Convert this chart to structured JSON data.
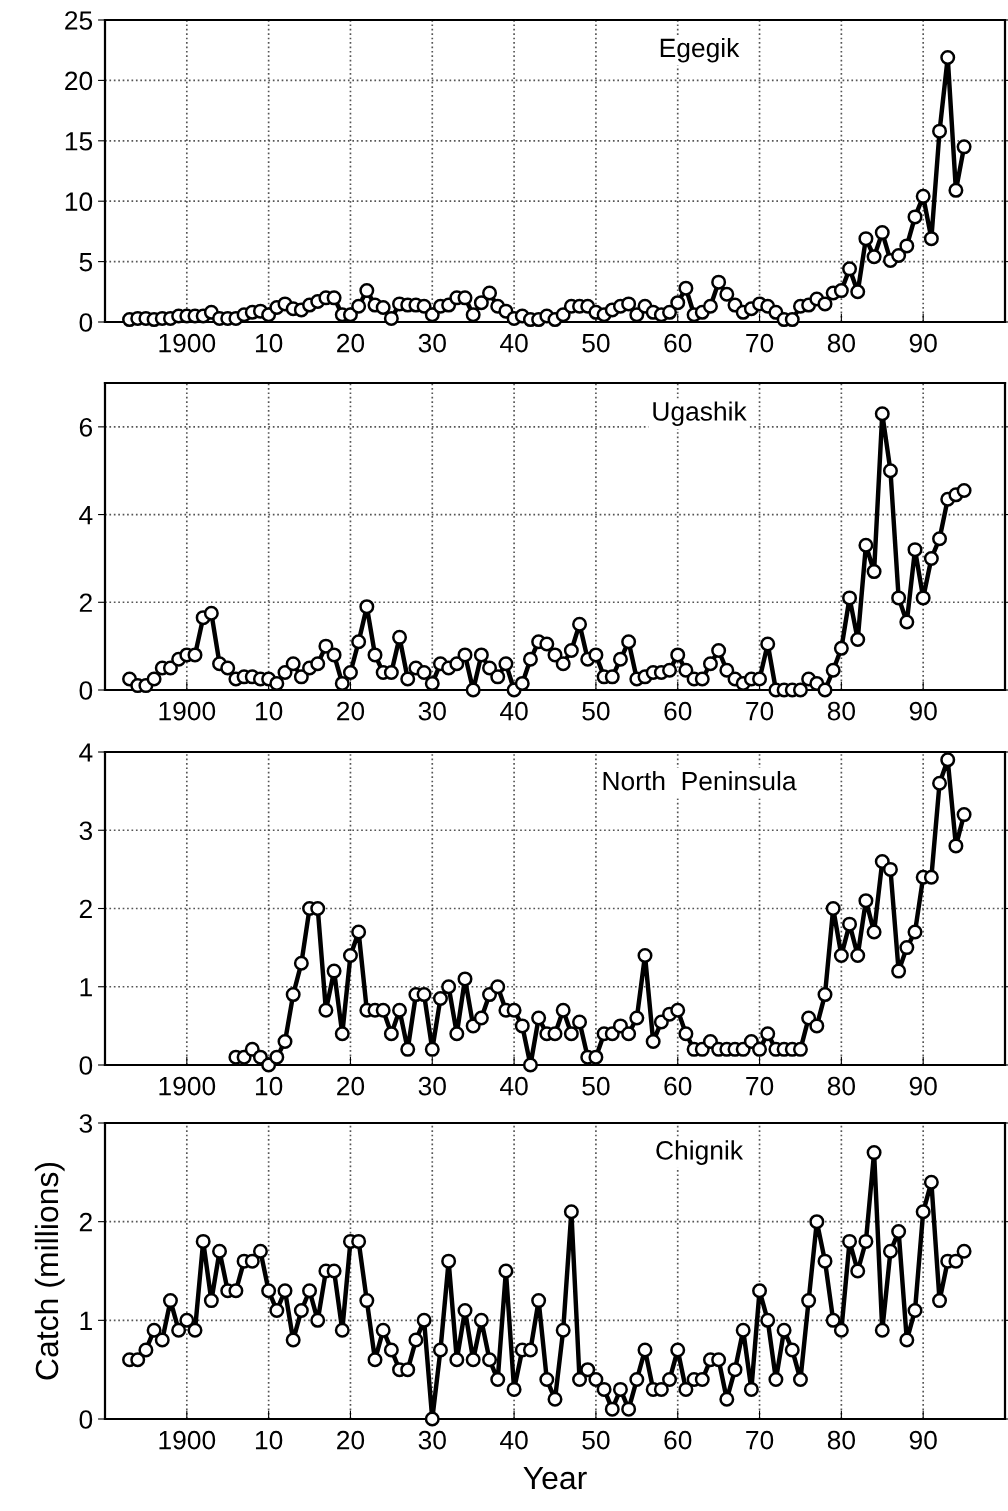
{
  "chart_data": [
    {
      "type": "line",
      "title": "Egegik",
      "xlim": [
        1890,
        2000
      ],
      "xticks": [
        {
          "value": 1890,
          "label": null
        },
        1900,
        {
          "value": 1910,
          "label": "10"
        },
        {
          "value": 1920,
          "label": "20"
        },
        {
          "value": 1930,
          "label": "30"
        },
        {
          "value": 1940,
          "label": "40"
        },
        {
          "value": 1950,
          "label": "50"
        },
        {
          "value": 1960,
          "label": "60"
        },
        {
          "value": 1970,
          "label": "70"
        },
        {
          "value": 1980,
          "label": "80"
        },
        {
          "value": 1990,
          "label": "90"
        },
        {
          "value": 2000,
          "label": null
        }
      ],
      "ylim": [
        0,
        25
      ],
      "yticks": [
        0,
        5,
        10,
        15,
        20,
        25
      ],
      "grid": true,
      "marker": "circle",
      "line_style": "solid",
      "x": [
        1893,
        1894,
        1895,
        1896,
        1897,
        1898,
        1899,
        1900,
        1901,
        1902,
        1903,
        1904,
        1905,
        1906,
        1907,
        1908,
        1909,
        1910,
        1911,
        1912,
        1913,
        1914,
        1915,
        1916,
        1917,
        1918,
        1919,
        1920,
        1921,
        1922,
        1923,
        1924,
        1925,
        1926,
        1927,
        1928,
        1929,
        1930,
        1931,
        1932,
        1933,
        1934,
        1935,
        1936,
        1937,
        1938,
        1939,
        1940,
        1941,
        1942,
        1943,
        1944,
        1945,
        1946,
        1947,
        1948,
        1949,
        1950,
        1951,
        1952,
        1953,
        1954,
        1955,
        1956,
        1957,
        1958,
        1959,
        1960,
        1961,
        1962,
        1963,
        1964,
        1965,
        1966,
        1967,
        1968,
        1969,
        1970,
        1971,
        1972,
        1973,
        1974,
        1975,
        1976,
        1977,
        1978,
        1979,
        1980,
        1981,
        1982,
        1983,
        1984,
        1985,
        1986,
        1987,
        1988,
        1989,
        1990,
        1991,
        1992,
        1993,
        1994,
        1995
      ],
      "series": [
        {
          "color": "#000000",
          "values": [
            0.2,
            0.3,
            0.3,
            0.2,
            0.3,
            0.3,
            0.5,
            0.5,
            0.5,
            0.5,
            0.8,
            0.3,
            0.3,
            0.3,
            0.6,
            0.8,
            0.9,
            0.6,
            1.2,
            1.5,
            1.1,
            1.0,
            1.4,
            1.7,
            2.0,
            2.0,
            0.6,
            0.6,
            1.3,
            2.6,
            1.4,
            1.2,
            0.3,
            1.5,
            1.4,
            1.4,
            1.3,
            0.6,
            1.3,
            1.4,
            2.0,
            2.0,
            0.6,
            1.6,
            2.4,
            1.3,
            0.9,
            0.3,
            0.5,
            0.2,
            0.2,
            0.5,
            0.2,
            0.6,
            1.3,
            1.3,
            1.3,
            0.8,
            0.6,
            1.0,
            1.3,
            1.5,
            0.6,
            1.3,
            0.8,
            0.6,
            0.8,
            1.6,
            2.8,
            0.6,
            0.8,
            1.3,
            3.3,
            2.3,
            1.4,
            0.8,
            1.1,
            1.5,
            1.3,
            0.8,
            0.2,
            0.2,
            1.3,
            1.4,
            1.9,
            1.5,
            2.4,
            2.6,
            4.4,
            2.5,
            6.9,
            5.4,
            7.4,
            5.1,
            5.5,
            6.3,
            8.7,
            10.4,
            6.9,
            15.8,
            21.9,
            10.9,
            14.5
          ]
        }
      ]
    },
    {
      "type": "line",
      "title": "Ugashik",
      "xlim": [
        1890,
        2000
      ],
      "xticks": [
        {
          "value": 1890,
          "label": null
        },
        1900,
        {
          "value": 1910,
          "label": "10"
        },
        {
          "value": 1920,
          "label": "20"
        },
        {
          "value": 1930,
          "label": "30"
        },
        {
          "value": 1940,
          "label": "40"
        },
        {
          "value": 1950,
          "label": "50"
        },
        {
          "value": 1960,
          "label": "60"
        },
        {
          "value": 1970,
          "label": "70"
        },
        {
          "value": 1980,
          "label": "80"
        },
        {
          "value": 1990,
          "label": "90"
        },
        {
          "value": 2000,
          "label": null
        }
      ],
      "ylim": [
        0,
        7
      ],
      "yticks": [
        0,
        2,
        4,
        6
      ],
      "grid": true,
      "marker": "circle",
      "line_style": "solid",
      "x": [
        1893,
        1894,
        1895,
        1896,
        1897,
        1898,
        1899,
        1900,
        1901,
        1902,
        1903,
        1904,
        1905,
        1906,
        1907,
        1908,
        1909,
        1910,
        1911,
        1912,
        1913,
        1914,
        1915,
        1916,
        1917,
        1918,
        1919,
        1920,
        1921,
        1922,
        1923,
        1924,
        1925,
        1926,
        1927,
        1928,
        1929,
        1930,
        1931,
        1932,
        1933,
        1934,
        1935,
        1936,
        1937,
        1938,
        1939,
        1940,
        1941,
        1942,
        1943,
        1944,
        1945,
        1946,
        1947,
        1948,
        1949,
        1950,
        1951,
        1952,
        1953,
        1954,
        1955,
        1956,
        1957,
        1958,
        1959,
        1960,
        1961,
        1962,
        1963,
        1964,
        1965,
        1966,
        1967,
        1968,
        1969,
        1970,
        1971,
        1972,
        1973,
        1974,
        1975,
        1976,
        1977,
        1978,
        1979,
        1980,
        1981,
        1982,
        1983,
        1984,
        1985,
        1986,
        1987,
        1988,
        1989,
        1990,
        1991,
        1992,
        1993,
        1994,
        1995
      ],
      "series": [
        {
          "color": "#000000",
          "values": [
            0.25,
            0.1,
            0.1,
            0.25,
            0.5,
            0.5,
            0.7,
            0.8,
            0.8,
            1.65,
            1.75,
            0.6,
            0.5,
            0.25,
            0.3,
            0.3,
            0.25,
            0.25,
            0.15,
            0.4,
            0.6,
            0.3,
            0.5,
            0.6,
            1.0,
            0.8,
            0.15,
            0.4,
            1.1,
            1.9,
            0.8,
            0.4,
            0.4,
            1.2,
            0.25,
            0.5,
            0.4,
            0.15,
            0.6,
            0.5,
            0.6,
            0.8,
            0.0,
            0.8,
            0.5,
            0.3,
            0.6,
            0.0,
            0.15,
            0.7,
            1.1,
            1.05,
            0.8,
            0.6,
            0.9,
            1.5,
            0.7,
            0.8,
            0.3,
            0.3,
            0.7,
            1.1,
            0.25,
            0.3,
            0.4,
            0.4,
            0.45,
            0.8,
            0.45,
            0.25,
            0.25,
            0.6,
            0.9,
            0.45,
            0.25,
            0.15,
            0.25,
            0.25,
            1.05,
            0.0,
            0.0,
            0.0,
            0.0,
            0.25,
            0.15,
            0.0,
            0.45,
            0.95,
            2.1,
            1.15,
            3.3,
            2.7,
            6.3,
            5.0,
            2.1,
            1.55,
            3.2,
            2.1,
            3.0,
            3.45,
            4.35,
            4.45,
            4.55
          ]
        }
      ]
    },
    {
      "type": "line",
      "title": "North  Peninsula",
      "xlim": [
        1890,
        2000
      ],
      "xticks": [
        {
          "value": 1890,
          "label": null
        },
        1900,
        {
          "value": 1910,
          "label": "10"
        },
        {
          "value": 1920,
          "label": "20"
        },
        {
          "value": 1930,
          "label": "30"
        },
        {
          "value": 1940,
          "label": "40"
        },
        {
          "value": 1950,
          "label": "50"
        },
        {
          "value": 1960,
          "label": "60"
        },
        {
          "value": 1970,
          "label": "70"
        },
        {
          "value": 1980,
          "label": "80"
        },
        {
          "value": 1990,
          "label": "90"
        },
        {
          "value": 2000,
          "label": null
        }
      ],
      "ylim": [
        0,
        4
      ],
      "yticks": [
        0,
        1,
        2,
        3,
        4
      ],
      "grid": true,
      "marker": "circle",
      "line_style": "solid",
      "x": [
        1906,
        1907,
        1908,
        1909,
        1910,
        1911,
        1912,
        1913,
        1914,
        1915,
        1916,
        1917,
        1918,
        1919,
        1920,
        1921,
        1922,
        1923,
        1924,
        1925,
        1926,
        1927,
        1928,
        1929,
        1930,
        1931,
        1932,
        1933,
        1934,
        1935,
        1936,
        1937,
        1938,
        1939,
        1940,
        1941,
        1942,
        1943,
        1944,
        1945,
        1946,
        1947,
        1948,
        1949,
        1950,
        1951,
        1952,
        1953,
        1954,
        1955,
        1956,
        1957,
        1958,
        1959,
        1960,
        1961,
        1962,
        1963,
        1964,
        1965,
        1966,
        1967,
        1968,
        1969,
        1970,
        1971,
        1972,
        1973,
        1974,
        1975,
        1976,
        1977,
        1978,
        1979,
        1980,
        1981,
        1982,
        1983,
        1984,
        1985,
        1986,
        1987,
        1988,
        1989,
        1990,
        1991,
        1992,
        1993,
        1994,
        1995
      ],
      "series": [
        {
          "color": "#000000",
          "values": [
            0.1,
            0.1,
            0.2,
            0.1,
            0.0,
            0.1,
            0.3,
            0.9,
            1.3,
            2.0,
            2.0,
            0.7,
            1.2,
            0.4,
            1.4,
            1.7,
            0.7,
            0.7,
            0.7,
            0.4,
            0.7,
            0.2,
            0.9,
            0.9,
            0.2,
            0.85,
            1.0,
            0.4,
            1.1,
            0.5,
            0.6,
            0.9,
            1.0,
            0.7,
            0.7,
            0.5,
            0.0,
            0.6,
            0.4,
            0.4,
            0.7,
            0.4,
            0.55,
            0.1,
            0.1,
            0.4,
            0.4,
            0.5,
            0.4,
            0.6,
            1.4,
            0.3,
            0.55,
            0.65,
            0.7,
            0.4,
            0.2,
            0.2,
            0.3,
            0.2,
            0.2,
            0.2,
            0.2,
            0.3,
            0.2,
            0.4,
            0.2,
            0.2,
            0.2,
            0.2,
            0.6,
            0.5,
            0.9,
            2.0,
            1.4,
            1.8,
            1.4,
            2.1,
            1.7,
            2.6,
            2.5,
            1.2,
            1.5,
            1.7,
            2.4,
            2.4,
            3.6,
            3.9,
            2.8,
            3.2
          ]
        }
      ]
    },
    {
      "type": "line",
      "title": "Chignik",
      "xlabel": "Year",
      "ylabel": "Catch (millions)",
      "xlim": [
        1890,
        2000
      ],
      "xticks": [
        {
          "value": 1890,
          "label": null
        },
        1900,
        {
          "value": 1910,
          "label": "10"
        },
        {
          "value": 1920,
          "label": "20"
        },
        {
          "value": 1930,
          "label": "30"
        },
        {
          "value": 1940,
          "label": "40"
        },
        {
          "value": 1950,
          "label": "50"
        },
        {
          "value": 1960,
          "label": "60"
        },
        {
          "value": 1970,
          "label": "70"
        },
        {
          "value": 1980,
          "label": "80"
        },
        {
          "value": 1990,
          "label": "90"
        },
        {
          "value": 2000,
          "label": null
        }
      ],
      "ylim": [
        0,
        3
      ],
      "yticks": [
        0,
        1,
        2,
        3
      ],
      "grid": true,
      "marker": "circle",
      "line_style": "solid",
      "x": [
        1893,
        1894,
        1895,
        1896,
        1897,
        1898,
        1899,
        1900,
        1901,
        1902,
        1903,
        1904,
        1905,
        1906,
        1907,
        1908,
        1909,
        1910,
        1911,
        1912,
        1913,
        1914,
        1915,
        1916,
        1917,
        1918,
        1919,
        1920,
        1921,
        1922,
        1923,
        1924,
        1925,
        1926,
        1927,
        1928,
        1929,
        1930,
        1931,
        1932,
        1933,
        1934,
        1935,
        1936,
        1937,
        1938,
        1939,
        1940,
        1941,
        1942,
        1943,
        1944,
        1945,
        1946,
        1947,
        1948,
        1949,
        1950,
        1951,
        1952,
        1953,
        1954,
        1955,
        1956,
        1957,
        1958,
        1959,
        1960,
        1961,
        1962,
        1963,
        1964,
        1965,
        1966,
        1967,
        1968,
        1969,
        1970,
        1971,
        1972,
        1973,
        1974,
        1975,
        1976,
        1977,
        1978,
        1979,
        1980,
        1981,
        1982,
        1983,
        1984,
        1985,
        1986,
        1987,
        1988,
        1989,
        1990,
        1991,
        1992,
        1993,
        1994,
        1995
      ],
      "series": [
        {
          "color": "#000000",
          "values": [
            0.6,
            0.6,
            0.7,
            0.9,
            0.8,
            1.2,
            0.9,
            1.0,
            0.9,
            1.8,
            1.2,
            1.7,
            1.3,
            1.3,
            1.6,
            1.6,
            1.7,
            1.3,
            1.1,
            1.3,
            0.8,
            1.1,
            1.3,
            1.0,
            1.5,
            1.5,
            0.9,
            1.8,
            1.8,
            1.2,
            0.6,
            0.9,
            0.7,
            0.5,
            0.5,
            0.8,
            1.0,
            0.0,
            0.7,
            1.6,
            0.6,
            1.1,
            0.6,
            1.0,
            0.6,
            0.4,
            1.5,
            0.3,
            0.7,
            0.7,
            1.2,
            0.4,
            0.2,
            0.9,
            2.1,
            0.4,
            0.5,
            0.4,
            0.3,
            0.1,
            0.3,
            0.1,
            0.4,
            0.7,
            0.3,
            0.3,
            0.4,
            0.7,
            0.3,
            0.4,
            0.4,
            0.6,
            0.6,
            0.2,
            0.5,
            0.9,
            0.3,
            1.3,
            1.0,
            0.4,
            0.9,
            0.7,
            0.4,
            1.2,
            2.0,
            1.6,
            1.0,
            0.9,
            1.8,
            1.5,
            1.8,
            2.7,
            0.9,
            1.7,
            1.9,
            0.8,
            1.1,
            2.1,
            2.4,
            1.2,
            1.6,
            1.6,
            1.7
          ]
        }
      ]
    }
  ]
}
